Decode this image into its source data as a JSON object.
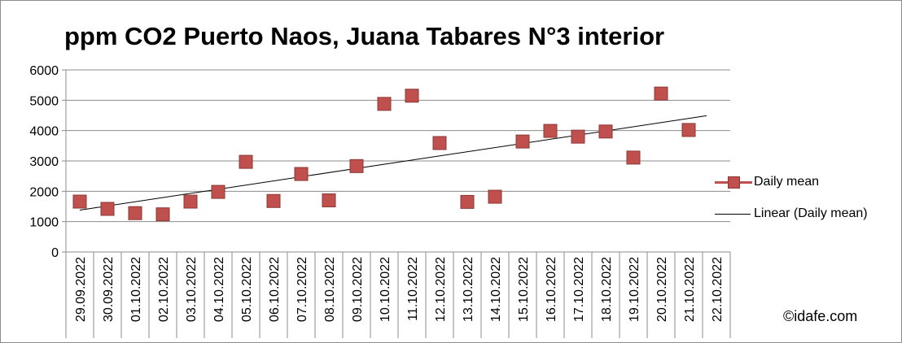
{
  "chart_data": {
    "type": "scatter",
    "title": "ppm CO2 Puerto Naos, Juana Tabares N°3 interior",
    "xlabel": "",
    "ylabel": "",
    "categories": [
      "29.09.2022",
      "30.09.2022",
      "01.10.2022",
      "02.10.2022",
      "03.10.2022",
      "04.10.2022",
      "05.10.2022",
      "06.10.2022",
      "07.10.2022",
      "08.10.2022",
      "09.10.2022",
      "10.10.2022",
      "11.10.2022",
      "12.10.2022",
      "13.10.2022",
      "14.10.2022",
      "15.10.2022",
      "16.10.2022",
      "17.10.2022",
      "18.10.2022",
      "19.10.2022",
      "20.10.2022",
      "21.10.2022",
      "22.10.2022"
    ],
    "series": [
      {
        "name": "Daily mean",
        "color": "#c0504d",
        "marker": "square",
        "values": [
          1660,
          1420,
          1280,
          1240,
          1660,
          1980,
          2970,
          1680,
          2570,
          1700,
          2830,
          4880,
          5150,
          3590,
          1650,
          1820,
          3640,
          3990,
          3800,
          3970,
          3110,
          5220,
          4020,
          null
        ]
      },
      {
        "name": "Linear (Daily mean)",
        "color": "#000000",
        "type": "trendline",
        "start": 1380,
        "end": 4490
      }
    ],
    "yticks": [
      0,
      1000,
      2000,
      3000,
      4000,
      5000,
      6000
    ],
    "ylim": [
      0,
      6000
    ],
    "grid": "horizontal",
    "legend_position": "right"
  },
  "watermark": "©idafe.com"
}
